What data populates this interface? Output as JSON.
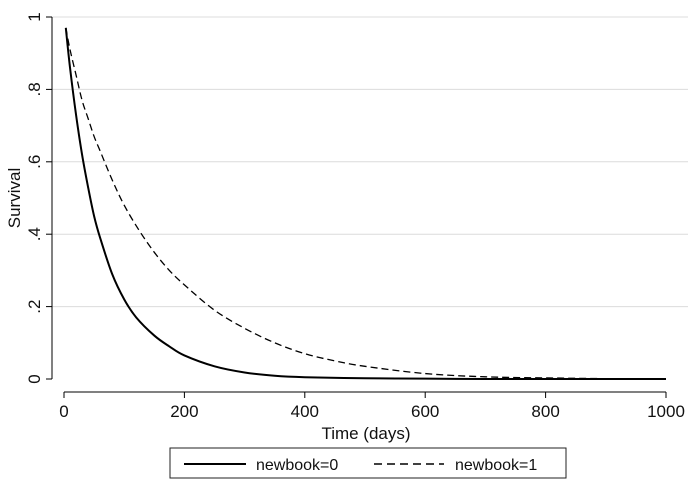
{
  "chart_data": {
    "type": "line",
    "xlabel": "Time (days)",
    "ylabel": "Survival",
    "xlim": [
      0,
      1000
    ],
    "ylim": [
      0,
      1
    ],
    "x_ticks": [
      0,
      200,
      400,
      600,
      800,
      1000
    ],
    "x_tick_labels": [
      "0",
      "200",
      "400",
      "600",
      "800",
      "1000"
    ],
    "y_ticks": [
      0,
      0.2,
      0.4,
      0.6,
      0.8,
      1
    ],
    "y_tick_labels": [
      "0",
      ".2",
      ".4",
      ".6",
      ".8",
      "1"
    ],
    "grid": "horizontal",
    "legend_position": "bottom",
    "series": [
      {
        "name": "newbook=0",
        "line_style": "solid",
        "color": "#000000",
        "x": [
          3,
          10,
          20,
          30,
          40,
          50,
          60,
          80,
          100,
          120,
          150,
          175,
          200,
          250,
          300,
          350,
          400,
          500,
          600,
          700,
          800,
          900,
          1000
        ],
        "y": [
          0.97,
          0.86,
          0.73,
          0.62,
          0.53,
          0.45,
          0.39,
          0.29,
          0.22,
          0.17,
          0.12,
          0.09,
          0.065,
          0.035,
          0.018,
          0.009,
          0.005,
          0.002,
          0.001,
          0.0,
          0.0,
          0.0,
          0.0
        ]
      },
      {
        "name": "newbook=1",
        "line_style": "dashed",
        "color": "#000000",
        "x": [
          3,
          10,
          20,
          30,
          40,
          50,
          60,
          80,
          100,
          125,
          150,
          175,
          200,
          250,
          300,
          350,
          400,
          450,
          500,
          600,
          700,
          800,
          900,
          1000
        ],
        "y": [
          0.97,
          0.91,
          0.84,
          0.77,
          0.72,
          0.67,
          0.63,
          0.55,
          0.48,
          0.41,
          0.35,
          0.3,
          0.26,
          0.19,
          0.14,
          0.1,
          0.07,
          0.05,
          0.035,
          0.015,
          0.006,
          0.003,
          0.001,
          0.0
        ]
      }
    ]
  }
}
